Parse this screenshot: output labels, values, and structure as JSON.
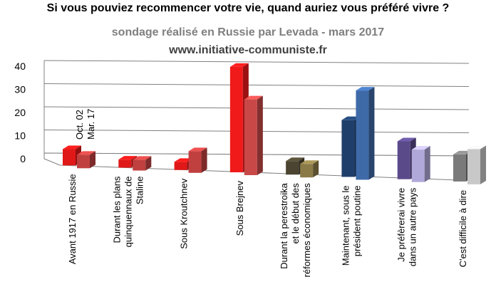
{
  "chart_data": {
    "type": "bar",
    "title": "Si vous pouviez recommencer votre vie, quand auriez vous préféré vivre ?",
    "subtitle": "sondage réalisé en Russie par Levada - mars 2017",
    "source": "www.initiative-communiste.fr",
    "categories": [
      [
        "Avant 1917 en Russie"
      ],
      [
        "Durant les plans",
        "quinquennaux de",
        "Staline"
      ],
      [
        "Sous Kroutchnev"
      ],
      [
        "Sous Brejnev"
      ],
      [
        "Durant la perestroika",
        "et le début des",
        "réformes économiques"
      ],
      [
        "Maintenant, sous le",
        "président poutine"
      ],
      [
        "Je préfèrerai  vivre",
        "dans un autre pays"
      ],
      [
        "C'est difficile à dire"
      ]
    ],
    "series": [
      {
        "name": "Oct. 02",
        "values": [
          6,
          3,
          3,
          39,
          5,
          21,
          14,
          10
        ]
      },
      {
        "name": "Mar. 17",
        "values": [
          5,
          4,
          8,
          28,
          5,
          33,
          12,
          13
        ]
      }
    ],
    "ylim": [
      0,
      40
    ],
    "yticks": [
      0,
      10,
      20,
      30,
      40
    ],
    "grid": true,
    "colors": {
      "series1": [
        "#e01818",
        "#e01818",
        "#e01818",
        "#f01a1a",
        "#4a4430",
        "#1f3f6a",
        "#5a4a8a",
        "#7a7a7a"
      ],
      "series2": [
        "#c04040",
        "#c04040",
        "#c04040",
        "#c84848",
        "#8a7a48",
        "#3f6aa8",
        "#b0a8d8",
        "#c8c8c8"
      ]
    }
  }
}
